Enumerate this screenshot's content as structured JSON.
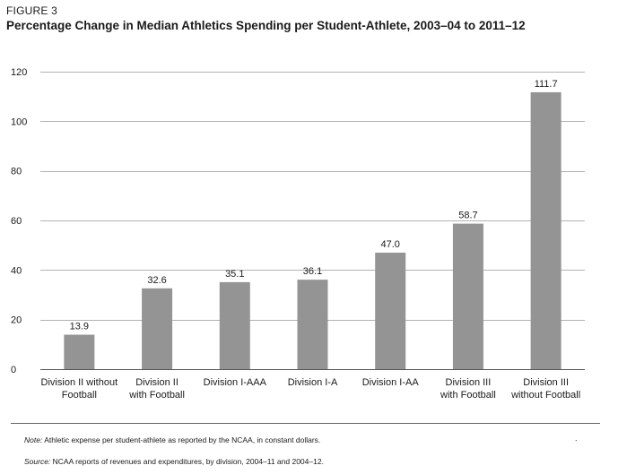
{
  "figure_label": "FIGURE 3",
  "title": "Percentage Change in Median Athletics Spending per Student-Athlete, 2003–04 to 2011–12",
  "chart_data": {
    "type": "bar",
    "title": "Percentage Change in Median Athletics Spending per Student-Athlete, 2003–04 to 2011–12",
    "categories": [
      [
        "Division II without",
        "Football"
      ],
      [
        "Division II",
        "with Football"
      ],
      [
        "Division I-AAA"
      ],
      [
        "Division I-A"
      ],
      [
        "Division I-AA"
      ],
      [
        "Division III",
        "with Football"
      ],
      [
        "Division III",
        "without Football"
      ]
    ],
    "values": [
      13.9,
      32.6,
      35.1,
      36.1,
      47.0,
      58.7,
      111.7
    ],
    "data_labels": [
      "13.9",
      "32.6",
      "35.1",
      "36.1",
      "47.0",
      "58.7",
      "111.7"
    ],
    "yticks": [
      0,
      20,
      40,
      60,
      80,
      100,
      120
    ],
    "ylim": [
      0,
      120
    ],
    "grid": true,
    "bar_color": "#949494",
    "grid_color": "#b3b3b3"
  },
  "note": {
    "lead": "Note:",
    "text": " Athletic expense per student-athlete as reported by the NCAA, in constant dollars."
  },
  "source": {
    "lead": "Source:",
    "text": " NCAA reports of revenues and expenditures, by division, 2004–11 and 2004–12."
  },
  "stray_mark": "."
}
